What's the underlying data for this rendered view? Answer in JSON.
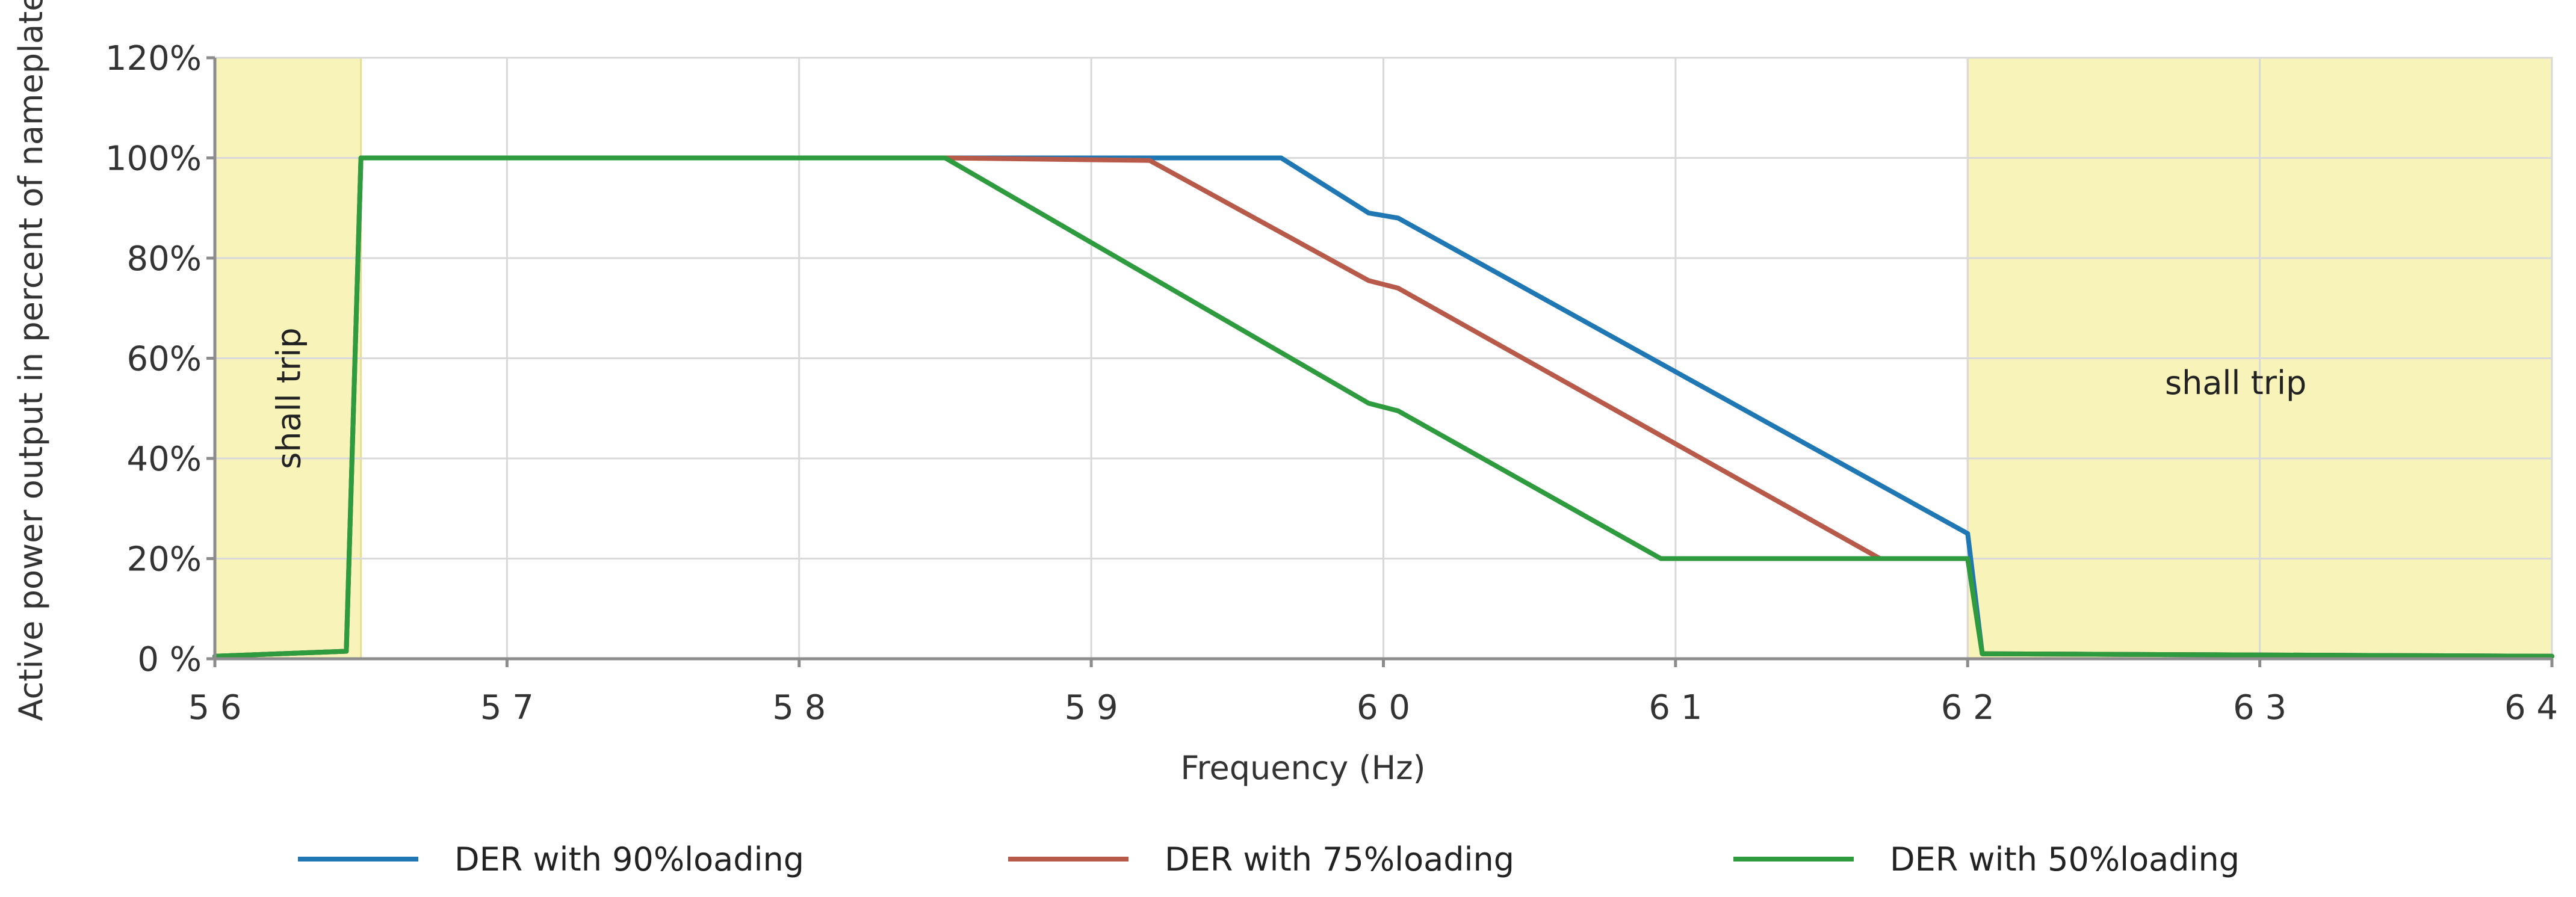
{
  "chart_data": {
    "type": "line",
    "title": "",
    "xlabel": "Frequency (Hz)",
    "ylabel": "Active power output in percent of nameplate",
    "xlim": [
      56,
      64
    ],
    "ylim": [
      0,
      120
    ],
    "x_tick_labels": [
      "5 6",
      "5 7",
      "5 8",
      "5 9",
      "6 0",
      "6 1",
      "6 2",
      "6 3",
      "6 4"
    ],
    "y_tick_labels": [
      "0 %",
      "20%",
      "40%",
      "60%",
      "80%",
      "100%",
      "120%"
    ],
    "grid": true,
    "legend_position": "bottom",
    "shaded_regions": [
      {
        "x0": 56.0,
        "x1": 56.5,
        "label": "shall trip",
        "label_orientation": "vertical",
        "color": "#f7f3b9"
      },
      {
        "x0": 62.0,
        "x1": 64.0,
        "label": "shall trip",
        "label_orientation": "horizontal",
        "color": "#f7f3b9"
      }
    ],
    "series": [
      {
        "name": "DER with 90%loading",
        "color": "#1f77b4",
        "points": [
          [
            56.0,
            0.5
          ],
          [
            56.45,
            1.5
          ],
          [
            56.5,
            100
          ],
          [
            58.5,
            100
          ],
          [
            59.65,
            100
          ],
          [
            59.95,
            89
          ],
          [
            60.05,
            88
          ],
          [
            62.0,
            25
          ],
          [
            62.05,
            1
          ],
          [
            64.0,
            0.5
          ]
        ]
      },
      {
        "name": "DER with 75%loading",
        "color": "#b85a4a",
        "points": [
          [
            56.0,
            0.5
          ],
          [
            56.45,
            1.5
          ],
          [
            56.5,
            100
          ],
          [
            58.5,
            100
          ],
          [
            59.2,
            99.5
          ],
          [
            59.95,
            75.5
          ],
          [
            60.05,
            74
          ],
          [
            61.7,
            20
          ],
          [
            62.0,
            20
          ],
          [
            62.05,
            1
          ],
          [
            64.0,
            0.5
          ]
        ]
      },
      {
        "name": "DER with 50%loading",
        "color": "#2e9b3e",
        "points": [
          [
            56.0,
            0.5
          ],
          [
            56.45,
            1.5
          ],
          [
            56.5,
            100
          ],
          [
            58.5,
            100
          ],
          [
            59.95,
            51
          ],
          [
            60.05,
            49.5
          ],
          [
            60.95,
            20
          ],
          [
            62.0,
            20
          ],
          [
            62.05,
            1
          ],
          [
            64.0,
            0.5
          ]
        ]
      }
    ]
  }
}
